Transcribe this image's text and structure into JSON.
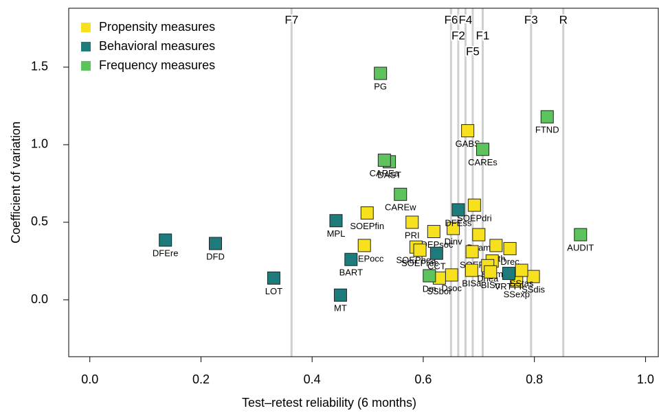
{
  "chart_data": {
    "type": "scatter",
    "xlabel": "Test–retest reliability (6 months)",
    "ylabel": "Coefficient of variation",
    "xlim": [
      -0.038,
      1.023
    ],
    "ylim": [
      -0.367,
      1.88
    ],
    "xticks": [
      {
        "value": 0,
        "label": "0.0"
      },
      0.2,
      0.4,
      0.6,
      0.8,
      {
        "value": 1,
        "label": "1.0"
      }
    ],
    "yticks": [
      {
        "value": 0,
        "label": "0.0"
      },
      0.5,
      {
        "value": 1,
        "label": "1.0"
      },
      1.5
    ],
    "legend": "top-left",
    "vlines": [
      {
        "label": "F7",
        "x": 0.363
      },
      {
        "label": "F6",
        "x": 0.65
      },
      {
        "label": "F2",
        "x": 0.663
      },
      {
        "label": "F4",
        "x": 0.676
      },
      {
        "label": "F5",
        "x": 0.689
      },
      {
        "label": "F1",
        "x": 0.707
      },
      {
        "label": "F3",
        "x": 0.794
      },
      {
        "label": "R",
        "x": 0.852
      }
    ],
    "series": [
      {
        "name": "Propensity measures",
        "color": "#f7e11e",
        "labels": [
          "GABS",
          "SOEPdri",
          "SOEPfin",
          "PRI",
          "SOEPsoc",
          "Dinv",
          "Dgam",
          "Deth",
          "Drec",
          "SOEPocc",
          "SOEPhea",
          "SOEPrec",
          "SOEP",
          "BISm",
          "Dhea",
          "BISn",
          "BISa",
          "Dsoc",
          "SSbor",
          "SSexp",
          "SSdis",
          "SStas"
        ],
        "x": [
          0.68,
          0.692,
          0.499,
          0.58,
          0.619,
          0.654,
          0.7,
          0.731,
          0.756,
          0.494,
          0.587,
          0.594,
          0.688,
          0.724,
          0.716,
          0.721,
          0.687,
          0.651,
          0.629,
          0.768,
          0.798,
          0.777
        ],
        "y": [
          1.09,
          0.61,
          0.56,
          0.5,
          0.44,
          0.46,
          0.42,
          0.35,
          0.33,
          0.35,
          0.34,
          0.32,
          0.31,
          0.25,
          0.22,
          0.18,
          0.19,
          0.16,
          0.14,
          0.12,
          0.15,
          0.19
        ]
      },
      {
        "name": "Behavioral measures",
        "color": "#1d7b7b",
        "labels": [
          "DFEre",
          "DFD",
          "LOT",
          "MT",
          "MPL",
          "BART",
          "DFEss",
          "CCT",
          "VRTTT"
        ],
        "x": [
          0.136,
          0.226,
          0.331,
          0.451,
          0.443,
          0.47,
          0.663,
          0.624,
          0.754
        ],
        "y": [
          0.385,
          0.363,
          0.14,
          0.03,
          0.51,
          0.26,
          0.58,
          0.3,
          0.17
        ]
      },
      {
        "name": "Frequency measures",
        "color": "#5dc35d",
        "labels": [
          "PG",
          "DAST",
          "CAREa",
          "CAREs",
          "FTND",
          "CAREw",
          "AUDIT",
          "Dm"
        ],
        "x": [
          0.523,
          0.539,
          0.53,
          0.707,
          0.823,
          0.559,
          0.883,
          0.611
        ],
        "y": [
          1.46,
          0.89,
          0.9,
          0.97,
          1.18,
          0.68,
          0.42,
          0.155
        ]
      }
    ]
  }
}
